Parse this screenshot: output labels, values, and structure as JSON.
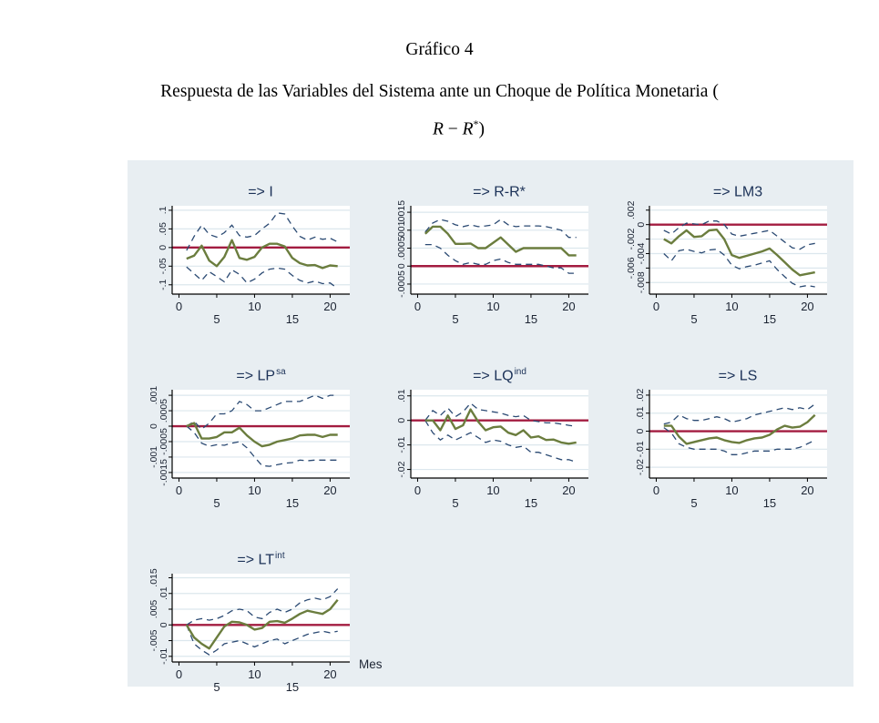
{
  "page": {
    "title": "Gráfico 4",
    "subtitle": "Respuesta de las Variables del Sistema ante un Choque de Política Monetaria (",
    "formula": {
      "lhs": "R",
      "minus": "−",
      "rhs": "R",
      "sup": "*",
      "close": ")"
    }
  },
  "colors": {
    "panel_bg": "#e8eef2",
    "plot_bg": "#ffffff",
    "gridline": "#dce7ed",
    "axis": "#000000",
    "zero_line": "#a31c40",
    "response": "#6b7d3e",
    "ci": "#2b4a73",
    "title_text": "#1b3157",
    "tick_text": "#1c2433"
  },
  "chart_data": [
    {
      "type": "line",
      "title": "=> I",
      "title_sup": "",
      "xlabel": "",
      "x": [
        1,
        2,
        3,
        4,
        5,
        6,
        7,
        8,
        9,
        10,
        11,
        12,
        13,
        14,
        15,
        16,
        17,
        18,
        19,
        20,
        21
      ],
      "xticks": [
        0,
        5,
        10,
        15,
        20
      ],
      "xlim": [
        -0.9,
        22.6
      ],
      "yticks": [
        -0.1,
        -0.05,
        0,
        0.05,
        0.1
      ],
      "ytick_labels": [
        "-.1",
        "-.05",
        "0",
        ".05",
        ".1"
      ],
      "ylim": [
        -0.125,
        0.112
      ],
      "zero_line": 0,
      "grid": "horizontal",
      "legend": "none",
      "series": [
        {
          "name": "irf",
          "values": [
            -0.03,
            -0.022,
            0.005,
            -0.035,
            -0.05,
            -0.025,
            0.02,
            -0.028,
            -0.033,
            -0.025,
            0.0,
            0.01,
            0.01,
            0.003,
            -0.028,
            -0.042,
            -0.048,
            -0.047,
            -0.055,
            -0.048,
            -0.05
          ]
        },
        {
          "name": "upper_ci",
          "values": [
            -0.008,
            0.03,
            0.06,
            0.035,
            0.028,
            0.04,
            0.06,
            0.032,
            0.028,
            0.032,
            0.05,
            0.065,
            0.093,
            0.09,
            0.058,
            0.03,
            0.02,
            0.028,
            0.022,
            0.025,
            0.015
          ]
        },
        {
          "name": "lower_ci",
          "values": [
            -0.052,
            -0.07,
            -0.088,
            -0.065,
            -0.078,
            -0.092,
            -0.06,
            -0.072,
            -0.095,
            -0.085,
            -0.068,
            -0.058,
            -0.055,
            -0.058,
            -0.075,
            -0.088,
            -0.095,
            -0.09,
            -0.097,
            -0.095,
            -0.11
          ]
        }
      ]
    },
    {
      "type": "line",
      "title": "=> R-R*",
      "title_sup": "",
      "xlabel": "",
      "x": [
        1,
        2,
        3,
        4,
        5,
        6,
        7,
        8,
        9,
        10,
        11,
        12,
        13,
        14,
        15,
        16,
        17,
        18,
        19,
        20,
        21
      ],
      "xticks": [
        0,
        5,
        10,
        15,
        20
      ],
      "xlim": [
        -0.9,
        22.6
      ],
      "yticks": [
        -0.0005,
        0,
        0.0005,
        0.001,
        0.0015
      ],
      "ytick_labels": [
        "-.0005",
        "0",
        ".0005",
        ".001",
        ".0015"
      ],
      "ylim": [
        -0.00078,
        0.00168
      ],
      "zero_line": 0,
      "grid": "horizontal",
      "legend": "none",
      "series": [
        {
          "name": "irf",
          "values": [
            0.0009,
            0.0011,
            0.0011,
            0.0009,
            0.00062,
            0.00062,
            0.00063,
            0.0005,
            0.0005,
            0.00065,
            0.0008,
            0.0006,
            0.0004,
            0.0005,
            0.0005,
            0.0005,
            0.0005,
            0.0005,
            0.0005,
            0.0003,
            0.0003
          ]
        },
        {
          "name": "upper_ci",
          "values": [
            0.00095,
            0.0012,
            0.0013,
            0.00125,
            0.00115,
            0.0011,
            0.00115,
            0.0011,
            0.00112,
            0.00115,
            0.0013,
            0.00115,
            0.0011,
            0.00112,
            0.00112,
            0.00112,
            0.0011,
            0.00105,
            0.001,
            0.0008,
            0.0008
          ]
        },
        {
          "name": "lower_ci",
          "values": [
            0.0006,
            0.0006,
            0.0005,
            0.0003,
            0.00015,
            5e-05,
            0.0001,
            5e-05,
            5e-05,
            0.00015,
            0.0002,
            0.0001,
            5e-05,
            5e-05,
            5e-05,
            5e-05,
            0.0,
            -5e-05,
            -5e-05,
            -0.0002,
            -0.0002
          ]
        }
      ]
    },
    {
      "type": "line",
      "title": "=> LM3",
      "title_sup": "",
      "xlabel": "",
      "x": [
        1,
        2,
        3,
        4,
        5,
        6,
        7,
        8,
        9,
        10,
        11,
        12,
        13,
        14,
        15,
        16,
        17,
        18,
        19,
        20,
        21
      ],
      "xticks": [
        0,
        5,
        10,
        15,
        20
      ],
      "xlim": [
        -0.9,
        22.6
      ],
      "yticks": [
        -0.008,
        -0.006,
        -0.004,
        -0.002,
        0,
        0.002
      ],
      "ytick_labels": [
        "-.008",
        "-.006",
        "-.004",
        "-.002",
        "0",
        ".002"
      ],
      "ylim": [
        -0.0096,
        0.0026
      ],
      "zero_line": 0,
      "grid": "horizontal",
      "legend": "none",
      "series": [
        {
          "name": "irf",
          "values": [
            -0.002,
            -0.0026,
            -0.0016,
            -0.0008,
            -0.0017,
            -0.0016,
            -0.0008,
            -0.0007,
            -0.002,
            -0.0042,
            -0.0046,
            -0.0043,
            -0.004,
            -0.0037,
            -0.0033,
            -0.0042,
            -0.0052,
            -0.0062,
            -0.007,
            -0.0068,
            -0.0066
          ]
        },
        {
          "name": "upper_ci",
          "values": [
            -0.0008,
            -0.0013,
            -0.0004,
            0.0002,
            0.0001,
            0.0,
            0.0005,
            0.0005,
            0.0,
            -0.0013,
            -0.0016,
            -0.0014,
            -0.0012,
            -0.001,
            -0.0008,
            -0.0016,
            -0.0024,
            -0.0032,
            -0.0034,
            -0.0028,
            -0.0026
          ]
        },
        {
          "name": "lower_ci",
          "values": [
            -0.004,
            -0.005,
            -0.0036,
            -0.0034,
            -0.0037,
            -0.0039,
            -0.0035,
            -0.0034,
            -0.0042,
            -0.0056,
            -0.0061,
            -0.0058,
            -0.0056,
            -0.0053,
            -0.005,
            -0.0062,
            -0.0072,
            -0.0081,
            -0.0086,
            -0.0084,
            -0.0086
          ]
        }
      ]
    },
    {
      "type": "line",
      "title": "=> LP",
      "title_sup": "sa",
      "xlabel": "",
      "x": [
        1,
        2,
        3,
        4,
        5,
        6,
        7,
        8,
        9,
        10,
        11,
        12,
        13,
        14,
        15,
        16,
        17,
        18,
        19,
        20,
        21
      ],
      "xticks": [
        0,
        5,
        10,
        15,
        20
      ],
      "xlim": [
        -0.9,
        22.6
      ],
      "yticks": [
        -0.0015,
        -0.001,
        -0.0005,
        0,
        0.0005,
        0.001
      ],
      "ytick_labels": [
        "-.0015",
        "-.001",
        "-.0005",
        "0",
        ".0005",
        ".001"
      ],
      "ylim": [
        -0.00168,
        0.00118
      ],
      "zero_line": 0,
      "grid": "horizontal",
      "legend": "none",
      "series": [
        {
          "name": "irf",
          "values": [
            0.0,
            0.0001,
            -0.0004,
            -0.0004,
            -0.00035,
            -0.0002,
            -0.0002,
            -5e-05,
            -0.0003,
            -0.0005,
            -0.00065,
            -0.0006,
            -0.0005,
            -0.00045,
            -0.0004,
            -0.0003,
            -0.00028,
            -0.00028,
            -0.00035,
            -0.00028,
            -0.00028
          ]
        },
        {
          "name": "upper_ci",
          "values": [
            0.0,
            0.00015,
            -0.0001,
            0.0001,
            0.0004,
            0.0004,
            0.0005,
            0.0008,
            0.0007,
            0.0005,
            0.0005,
            0.0006,
            0.0007,
            0.0008,
            0.0008,
            0.0008,
            0.0009,
            0.001,
            0.0009,
            0.001,
            0.001
          ]
        },
        {
          "name": "lower_ci",
          "values": [
            0.0,
            -0.0002,
            -0.00055,
            -0.00065,
            -0.0006,
            -0.00062,
            -0.00055,
            -0.0005,
            -0.0007,
            -0.001,
            -0.00128,
            -0.0013,
            -0.00125,
            -0.0012,
            -0.00118,
            -0.0011,
            -0.00112,
            -0.0011,
            -0.0011,
            -0.0011,
            -0.0011
          ]
        }
      ]
    },
    {
      "type": "line",
      "title": "=> LQ",
      "title_sup": "ind",
      "xlabel": "",
      "x": [
        1,
        2,
        3,
        4,
        5,
        6,
        7,
        8,
        9,
        10,
        11,
        12,
        13,
        14,
        15,
        16,
        17,
        18,
        19,
        20,
        21
      ],
      "xticks": [
        0,
        5,
        10,
        15,
        20
      ],
      "xlim": [
        -0.9,
        22.6
      ],
      "yticks": [
        -0.02,
        -0.01,
        0,
        0.01
      ],
      "ytick_labels": [
        "-.02",
        "-.01",
        "0",
        ".01"
      ],
      "ylim": [
        -0.0235,
        0.0125
      ],
      "zero_line": 0,
      "grid": "horizontal",
      "legend": "none",
      "series": [
        {
          "name": "irf",
          "values": [
            0.0,
            0.0,
            -0.004,
            0.002,
            -0.0035,
            -0.002,
            0.0045,
            -0.0005,
            -0.004,
            -0.0028,
            -0.0025,
            -0.005,
            -0.006,
            -0.004,
            -0.007,
            -0.0065,
            -0.008,
            -0.0078,
            -0.009,
            -0.0095,
            -0.009
          ]
        },
        {
          "name": "upper_ci",
          "values": [
            0.0,
            0.004,
            0.002,
            0.005,
            0.0015,
            0.0035,
            0.007,
            0.0045,
            0.004,
            0.0035,
            0.003,
            0.002,
            0.0015,
            0.002,
            0.0,
            -0.0005,
            -0.001,
            -0.001,
            -0.0015,
            -0.002,
            -0.0025
          ]
        },
        {
          "name": "lower_ci",
          "values": [
            0.0,
            -0.005,
            -0.008,
            -0.006,
            -0.008,
            -0.0065,
            -0.005,
            -0.007,
            -0.009,
            -0.008,
            -0.0085,
            -0.01,
            -0.011,
            -0.0105,
            -0.013,
            -0.013,
            -0.014,
            -0.015,
            -0.016,
            -0.016,
            -0.017
          ]
        }
      ]
    },
    {
      "type": "line",
      "title": "=> LS",
      "title_sup": "",
      "xlabel": "",
      "x": [
        1,
        2,
        3,
        4,
        5,
        6,
        7,
        8,
        9,
        10,
        11,
        12,
        13,
        14,
        15,
        16,
        17,
        18,
        19,
        20,
        21
      ],
      "xticks": [
        0,
        5,
        10,
        15,
        20
      ],
      "xlim": [
        -0.9,
        22.6
      ],
      "yticks": [
        -0.02,
        -0.01,
        0,
        0.01,
        0.02
      ],
      "ytick_labels": [
        "-.02",
        "-.01",
        "0",
        ".01",
        ".02"
      ],
      "ylim": [
        -0.026,
        0.023
      ],
      "zero_line": 0,
      "grid": "horizontal",
      "legend": "none",
      "series": [
        {
          "name": "irf",
          "values": [
            0.003,
            0.003,
            -0.003,
            -0.007,
            -0.006,
            -0.005,
            -0.004,
            -0.0035,
            -0.005,
            -0.006,
            -0.0065,
            -0.005,
            -0.004,
            -0.0035,
            -0.002,
            0.001,
            0.003,
            0.002,
            0.0025,
            0.005,
            0.009
          ]
        },
        {
          "name": "upper_ci",
          "values": [
            0.004,
            0.005,
            0.009,
            0.007,
            0.006,
            0.006,
            0.007,
            0.008,
            0.007,
            0.005,
            0.006,
            0.007,
            0.009,
            0.01,
            0.011,
            0.012,
            0.013,
            0.012,
            0.013,
            0.012,
            0.015
          ]
        },
        {
          "name": "lower_ci",
          "values": [
            0.002,
            -0.001,
            -0.007,
            -0.009,
            -0.01,
            -0.01,
            -0.01,
            -0.01,
            -0.011,
            -0.013,
            -0.013,
            -0.012,
            -0.011,
            -0.011,
            -0.011,
            -0.01,
            -0.01,
            -0.01,
            -0.009,
            -0.007,
            -0.005
          ]
        }
      ]
    },
    {
      "type": "line",
      "title": "=> LT",
      "title_sup": "int",
      "xlabel": "Mes",
      "x": [
        1,
        2,
        3,
        4,
        5,
        6,
        7,
        8,
        9,
        10,
        11,
        12,
        13,
        14,
        15,
        16,
        17,
        18,
        19,
        20,
        21
      ],
      "xticks": [
        0,
        5,
        10,
        15,
        20
      ],
      "xlim": [
        -0.9,
        22.6
      ],
      "yticks": [
        -0.01,
        -0.005,
        0,
        0.005,
        0.01,
        0.015
      ],
      "ytick_labels": [
        "-.01",
        "-.005",
        "0",
        ".005",
        ".01",
        ".015"
      ],
      "ylim": [
        -0.0118,
        0.0163
      ],
      "zero_line": 0,
      "grid": "horizontal",
      "legend": "none",
      "series": [
        {
          "name": "irf",
          "values": [
            0.0,
            -0.004,
            -0.006,
            -0.0075,
            -0.004,
            -0.0005,
            0.001,
            0.0008,
            0.0,
            -0.0015,
            -0.001,
            0.001,
            0.0012,
            0.0007,
            0.002,
            0.0035,
            0.0045,
            0.004,
            0.0035,
            0.005,
            0.008
          ]
        },
        {
          "name": "upper_ci",
          "values": [
            0.0,
            0.0015,
            0.002,
            0.0015,
            0.002,
            0.003,
            0.0045,
            0.005,
            0.0045,
            0.0025,
            0.002,
            0.004,
            0.005,
            0.004,
            0.005,
            0.007,
            0.008,
            0.0085,
            0.008,
            0.009,
            0.0115
          ]
        },
        {
          "name": "lower_ci",
          "values": [
            0.0,
            -0.006,
            -0.008,
            -0.0095,
            -0.008,
            -0.006,
            -0.0055,
            -0.005,
            -0.006,
            -0.007,
            -0.006,
            -0.005,
            -0.0045,
            -0.006,
            -0.005,
            -0.004,
            -0.003,
            -0.0025,
            -0.002,
            -0.0025,
            -0.002
          ]
        }
      ]
    }
  ]
}
